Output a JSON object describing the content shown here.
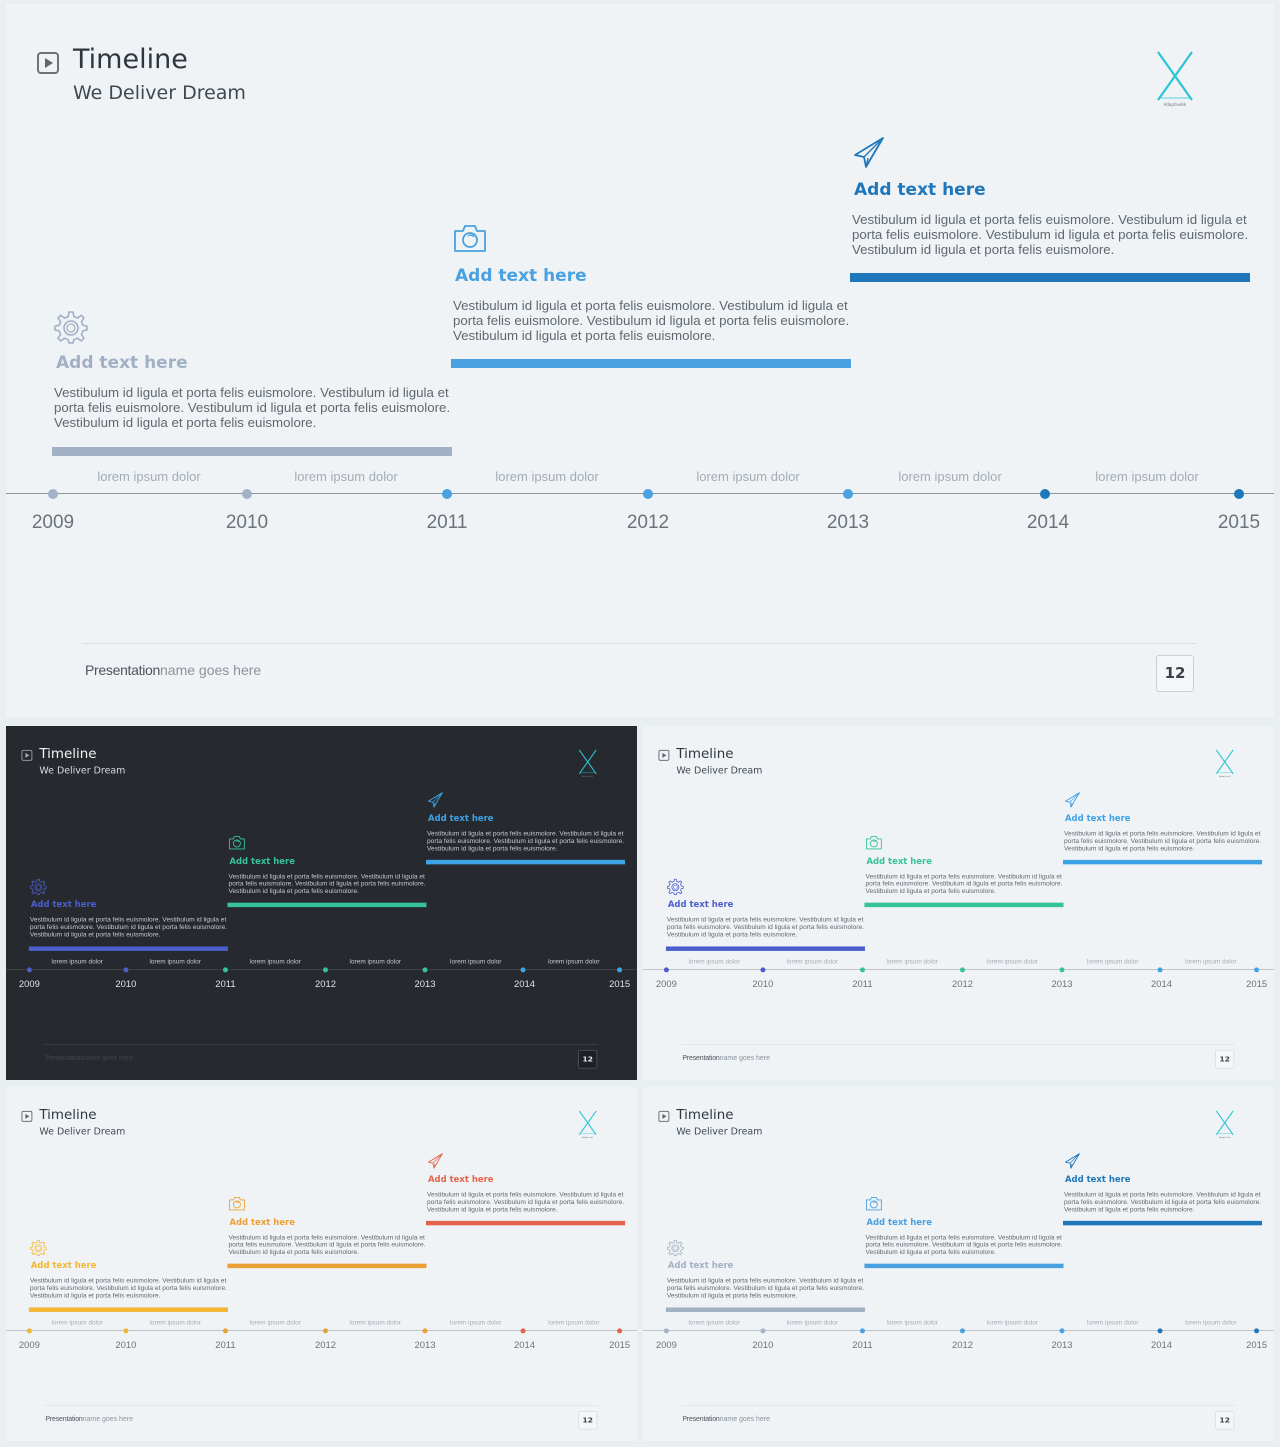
{
  "slide": {
    "title": "Timeline",
    "subtitle": "We Deliver Dream",
    "logo_caption": "Adaptivehk",
    "blocks": [
      {
        "icon": "gear-icon",
        "heading": "Add text here",
        "body": "Vestibulum id ligula et porta felis euismolore. Vestibulum id ligula et porta felis euismolore. Vestibulum id ligula et porta felis euismolore. Vestibulum id ligula et porta felis euismolore."
      },
      {
        "icon": "camera-icon",
        "heading": "Add text here",
        "body": "Vestibulum id ligula et porta felis euismolore. Vestibulum id ligula et porta felis euismolore. Vestibulum id ligula et porta felis euismolore. Vestibulum id ligula et porta felis euismolore."
      },
      {
        "icon": "paper-plane-icon",
        "heading": "Add text here",
        "body": "Vestibulum id ligula et porta felis euismolore. Vestibulum id ligula et porta felis euismolore. Vestibulum id ligula et porta felis euismolore. Vestibulum id ligula et porta felis euismolore."
      }
    ],
    "years": [
      "2009",
      "2010",
      "2011",
      "2012",
      "2013",
      "2014",
      "2015"
    ],
    "period_labels": [
      "lorem ipsum dolor",
      "lorem ipsum dolor",
      "lorem ipsum dolor",
      "lorem ipsum dolor",
      "lorem ipsum dolor",
      "lorem ipsum dolor"
    ],
    "footer_bold": "Presentation",
    "footer_rest": "name goes here",
    "page_number": "12"
  },
  "variants": [
    {
      "theme": "light",
      "logo_color": "#2bc4d4",
      "block_colors": [
        "#a2b0c5",
        "#4aa1df",
        "#1f77bb"
      ],
      "dot_colors": [
        "#a3b2c7",
        "#a3b2c7",
        "#4aa1df",
        "#4aa1df",
        "#4aa1df",
        "#1f77bb",
        "#1f77bb"
      ]
    },
    {
      "theme": "dark",
      "logo_color": "#2bc4d4",
      "block_colors": [
        "#4c5ecb",
        "#36c29b",
        "#3ea3e6"
      ],
      "dot_colors": [
        "#4c5ecb",
        "#4c5ecb",
        "#36c29b",
        "#36c29b",
        "#36c29b",
        "#3ea3e6",
        "#3ea3e6"
      ]
    },
    {
      "theme": "light",
      "logo_color": "#2bc4d4",
      "block_colors": [
        "#4c5ecb",
        "#36c29b",
        "#3ea3e6"
      ],
      "dot_colors": [
        "#4c5ecb",
        "#4c5ecb",
        "#36c29b",
        "#36c29b",
        "#36c29b",
        "#3ea3e6",
        "#3ea3e6"
      ]
    },
    {
      "theme": "light",
      "logo_color": "#2bc4d4",
      "block_colors": [
        "#f3b633",
        "#eaa034",
        "#e4644b"
      ],
      "dot_colors": [
        "#f3b633",
        "#f3b633",
        "#eaa034",
        "#eaa034",
        "#eaa034",
        "#e4644b",
        "#e4644b"
      ]
    },
    {
      "theme": "light",
      "logo_color": "#2bc4d4",
      "block_colors": [
        "#a2b0c5",
        "#4aa1df",
        "#1f77bb"
      ],
      "dot_colors": [
        "#a3b2c7",
        "#a3b2c7",
        "#4aa1df",
        "#4aa1df",
        "#4aa1df",
        "#1f77bb",
        "#1f77bb"
      ]
    }
  ]
}
